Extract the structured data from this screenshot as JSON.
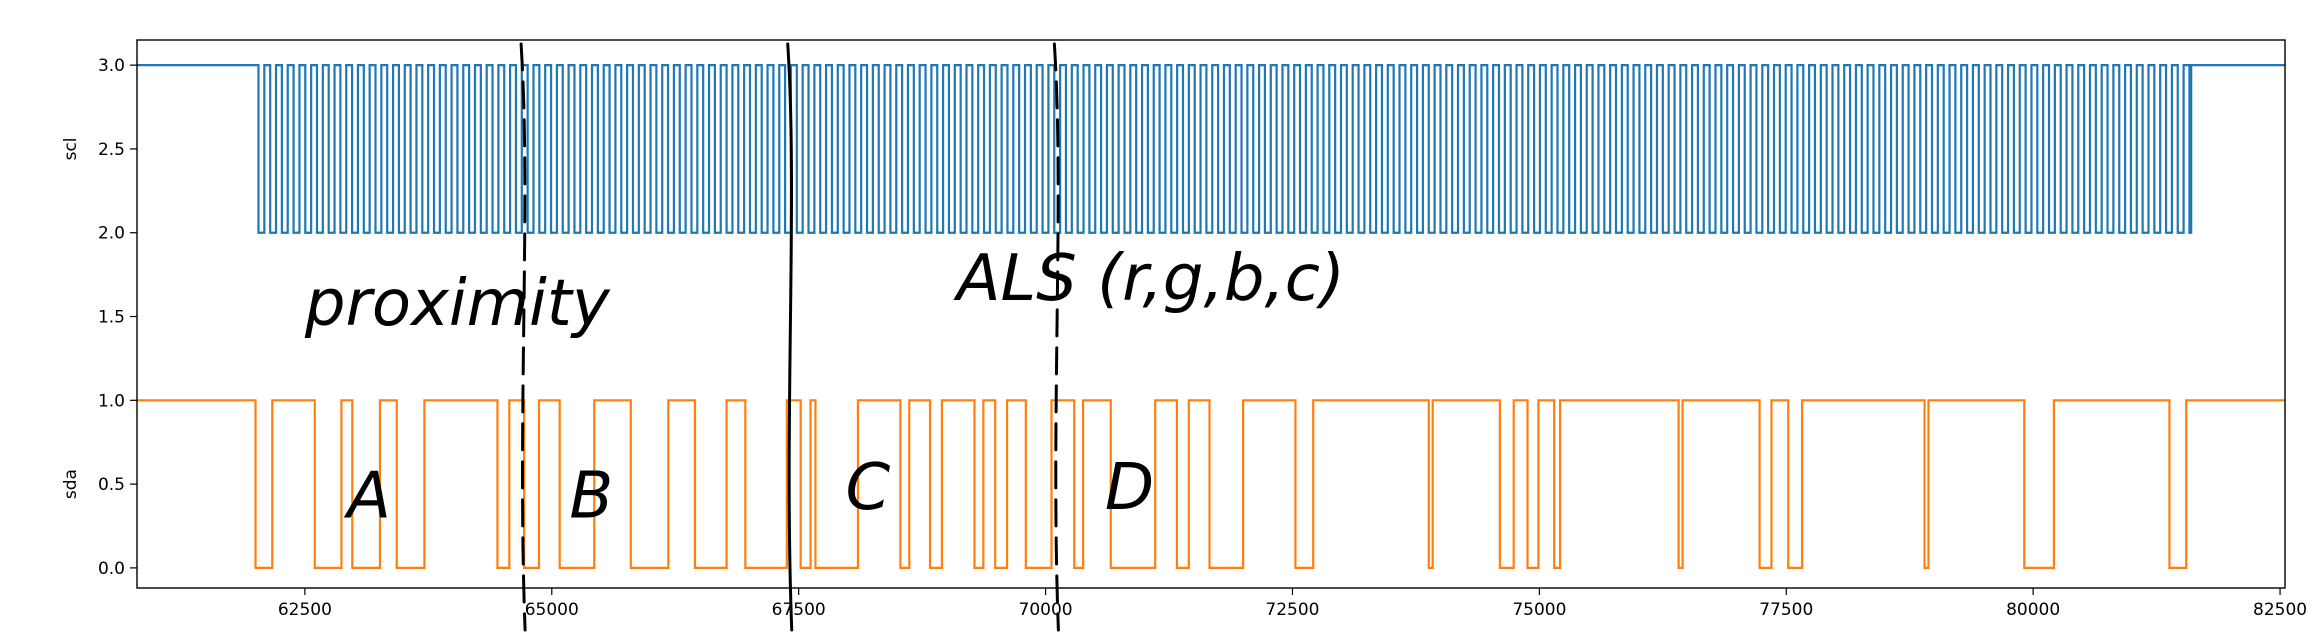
{
  "chart_data": {
    "type": "line",
    "xlim": [
      60800,
      82550
    ],
    "ylim": [
      -0.12,
      3.15
    ],
    "x_ticks": [
      "62500",
      "65000",
      "67500",
      "70000",
      "72500",
      "75000",
      "77500",
      "80000",
      "82500"
    ],
    "y_ticks": [
      "0.0",
      "0.5",
      "1.0",
      "1.5",
      "2.0",
      "2.5",
      "3.0"
    ],
    "ylabels": [
      "scl",
      "sda"
    ],
    "series": [
      {
        "name": "scl",
        "color": "#1f77b4",
        "high": 3.0,
        "low": 2.0,
        "idle_until": 62030,
        "clock_start": 62030,
        "clock_end": 81600,
        "clock_period": 118.5,
        "duty_low": 0.5
      },
      {
        "name": "sda",
        "color": "#ff7f0e",
        "high": 1.0,
        "low": 0.0,
        "pulses": [
          [
            62000,
            62170
          ],
          [
            62600,
            62870
          ],
          [
            62980,
            63260
          ],
          [
            63430,
            63710
          ],
          [
            64450,
            64570
          ],
          [
            64720,
            64870
          ],
          [
            65080,
            65430
          ],
          [
            65800,
            66180
          ],
          [
            66450,
            66770
          ],
          [
            66960,
            67380
          ],
          [
            67520,
            67620
          ],
          [
            67670,
            68100
          ],
          [
            68530,
            68620
          ],
          [
            68830,
            68950
          ],
          [
            69280,
            69370
          ],
          [
            69490,
            69610
          ],
          [
            69800,
            70060
          ],
          [
            70290,
            70380
          ],
          [
            70660,
            71110
          ],
          [
            71330,
            71450
          ],
          [
            71660,
            72000
          ],
          [
            72530,
            72710
          ],
          [
            73880,
            73920
          ],
          [
            74600,
            74740
          ],
          [
            74880,
            74990
          ],
          [
            75150,
            75210
          ],
          [
            76410,
            76450
          ],
          [
            77230,
            77350
          ],
          [
            77520,
            77660
          ],
          [
            78900,
            78940
          ],
          [
            79910,
            80210
          ],
          [
            81380,
            81550
          ]
        ]
      }
    ],
    "annotations": [
      {
        "text": "proximity",
        "x": 62500,
        "y": 1.45
      },
      {
        "text": "ALS (r,g,b,c)",
        "x": 69100,
        "y": 1.6
      },
      {
        "text": "A",
        "x": 63150,
        "y": 0.3
      },
      {
        "text": "B",
        "x": 65400,
        "y": 0.3
      },
      {
        "text": "C",
        "x": 68200,
        "y": 0.35
      },
      {
        "text": "D",
        "x": 70850,
        "y": 0.35
      }
    ],
    "dividers": [
      {
        "x": 64750,
        "style": "dashed"
      },
      {
        "x": 67450,
        "style": "solid"
      },
      {
        "x": 70150,
        "style": "dashed"
      }
    ],
    "grid": false
  }
}
